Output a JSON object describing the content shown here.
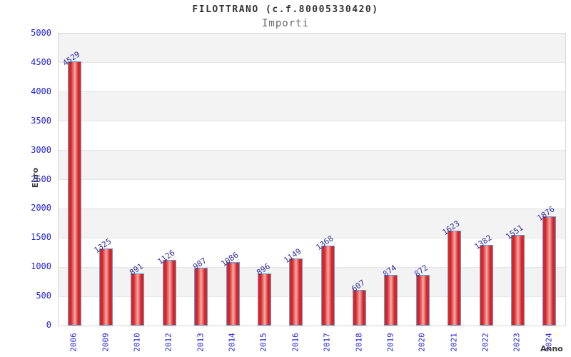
{
  "chart_data": {
    "type": "bar",
    "title": "FILOTTRANO (c.f.80005330420)",
    "subtitle": "Importi",
    "xlabel": "Anno",
    "ylabel": "Euro",
    "categories": [
      "2006",
      "2009",
      "2010",
      "2012",
      "2013",
      "2014",
      "2015",
      "2016",
      "2017",
      "2018",
      "2019",
      "2020",
      "2021",
      "2022",
      "2023",
      "2024"
    ],
    "values": [
      4529,
      1325,
      891,
      1126,
      987,
      1086,
      896,
      1149,
      1368,
      607,
      874,
      872,
      1623,
      1382,
      1551,
      1876
    ],
    "ylim": [
      0,
      5000
    ],
    "ytick_step": 500,
    "yticks": [
      0,
      500,
      1000,
      1500,
      2000,
      2500,
      3000,
      3500,
      4000,
      4500,
      5000
    ],
    "legend": "none",
    "grid": "horizontal-bands",
    "colors": {
      "bar_fill_edge": "#d31f1f",
      "bar_fill_center": "#f5b0b0",
      "bar_border": "#5b9ddb",
      "tick_label": "#2424d6",
      "value_label": "#2e2e9e",
      "band_gray": "#f3f3f3",
      "band_white": "#ffffff",
      "title_color": "#333333",
      "subtitle_color": "#666666",
      "axis_label_color": "#3d3d3d"
    }
  }
}
